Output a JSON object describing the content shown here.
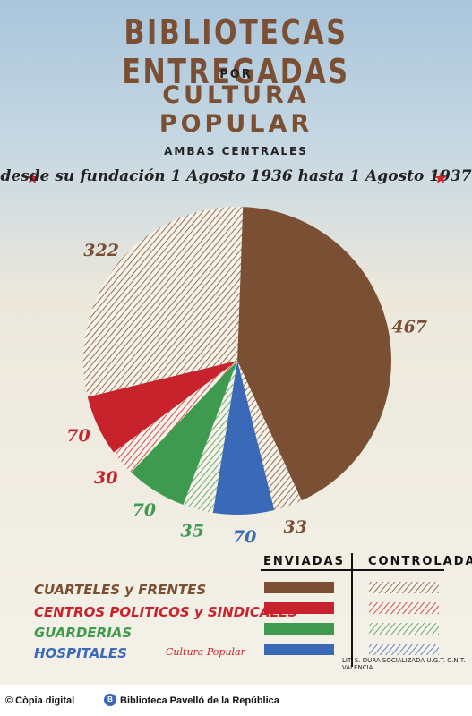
{
  "poster": {
    "title": "BIBLIOTECAS ENTREGADAS",
    "por": "POR",
    "org_line1": "CULTURA",
    "org_line2": "POPULAR",
    "subtitle": "AMBAS CENTRALES",
    "period": "desde su fundación 1 Agosto 1936 hasta 1 Agosto 1937",
    "logo_text": "Cultura Popular",
    "printer": "LIT. S. DURA SOCIALIZADA U.G.T. C.N.T. VALENCIA"
  },
  "legend": {
    "header_sent": "ENVIADAS",
    "header_controlled": "CONTROLADAS",
    "categories": [
      "CUARTELES y FRENTES",
      "CENTROS POLITICOS y SINDICALES",
      "GUARDERIAS",
      "HOSPITALES"
    ]
  },
  "chart_data": {
    "type": "pie",
    "slices": [
      {
        "category": "CUARTELES y FRENTES",
        "kind": "ENVIADAS",
        "value": 467,
        "color": "#7a4f33",
        "label": "467"
      },
      {
        "category": "CUARTELES y FRENTES",
        "kind": "CONTROLADAS",
        "value": 33,
        "color": "#7a4f33",
        "label": "33",
        "hatched": true
      },
      {
        "category": "HOSPITALES",
        "kind": "ENVIADAS",
        "value": 70,
        "color": "#3a69b8",
        "label": "70"
      },
      {
        "category": "GUARDERIAS",
        "kind": "CONTROLADAS",
        "value": 35,
        "color": "#3d9a4e",
        "label": "35",
        "hatched": true
      },
      {
        "category": "GUARDERIAS",
        "kind": "ENVIADAS",
        "value": 70,
        "color": "#3d9a4e",
        "label": "70"
      },
      {
        "category": "CENTROS POLITICOS y SINDICALES",
        "kind": "CONTROLADAS",
        "value": 30,
        "color": "#c8232c",
        "label": "30",
        "hatched": true
      },
      {
        "category": "CENTROS POLITICOS y SINDICALES",
        "kind": "ENVIADAS",
        "value": 70,
        "color": "#c8232c",
        "label": "70"
      },
      {
        "category": "CUARTELES y FRENTES",
        "kind": "CONTROLADAS",
        "value": 322,
        "color": "#7a4f33",
        "label": "322",
        "hatched": true
      }
    ]
  },
  "footer": {
    "left": "© Còpia digital",
    "right": "Biblioteca Pavelló de la República"
  },
  "colors": {
    "brown": "#7a4f33",
    "red": "#c8232c",
    "green": "#3d9a4e",
    "blue": "#3a69b8"
  }
}
